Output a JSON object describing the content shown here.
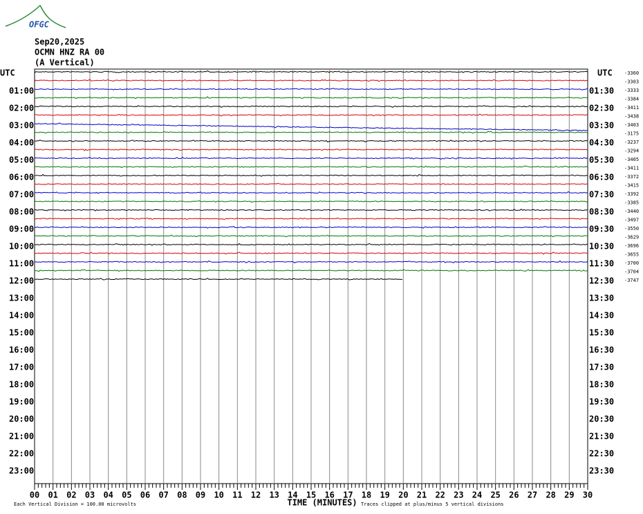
{
  "logo": "OFGC",
  "header": {
    "date": "Sep20,2025",
    "station": "OCMN HNZ RA 00",
    "component": "(A Vertical)"
  },
  "left_axis": {
    "title": "UTC",
    "labels": [
      "01:00",
      "02:00",
      "03:00",
      "04:00",
      "05:00",
      "06:00",
      "07:00",
      "08:00",
      "09:00",
      "10:00",
      "11:00",
      "12:00",
      "13:00",
      "14:00",
      "15:00",
      "16:00",
      "17:00",
      "18:00",
      "19:00",
      "20:00",
      "21:00",
      "22:00",
      "23:00"
    ]
  },
  "right_axis": {
    "title": "UTC",
    "labels": [
      "01:30",
      "02:30",
      "03:30",
      "04:30",
      "05:30",
      "06:30",
      "07:30",
      "08:30",
      "09:30",
      "10:30",
      "11:30",
      "12:30",
      "13:30",
      "14:30",
      "15:30",
      "16:30",
      "17:30",
      "18:30",
      "19:30",
      "20:30",
      "21:30",
      "22:30",
      "23:30"
    ]
  },
  "offsets": [
    "-3360",
    "-3303",
    "-3333",
    "-3384",
    "-3411",
    "-3438",
    "-3403",
    "-3175",
    "-3237",
    "-3294",
    "-3405",
    "-3411",
    "-3372",
    "-3415",
    "-3392",
    "-3385",
    "-3440",
    "-3497",
    "-3550",
    "-3629",
    "-3696",
    "-3655",
    "-3700",
    "-3704",
    "-3747"
  ],
  "x_axis": {
    "title": "TIME (MINUTES)",
    "labels": [
      "00",
      "01",
      "02",
      "03",
      "04",
      "05",
      "06",
      "07",
      "08",
      "09",
      "10",
      "11",
      "12",
      "13",
      "14",
      "15",
      "16",
      "17",
      "18",
      "19",
      "20",
      "21",
      "22",
      "23",
      "24",
      "25",
      "26",
      "27",
      "28",
      "29",
      "30"
    ]
  },
  "footer": {
    "scale": "Each Vertical Division =  100.00 microvolts",
    "clip": "Traces clipped at plus/minus 5 vertical divisions"
  }
}
